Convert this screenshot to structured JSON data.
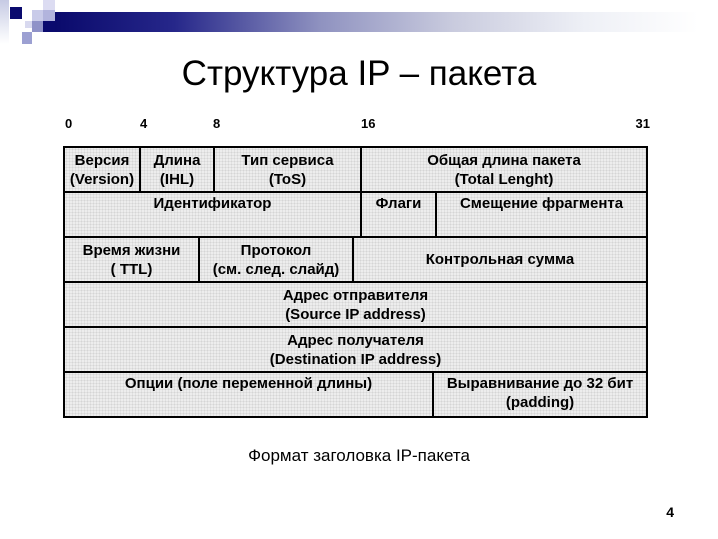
{
  "slide": {
    "title": "Структура IP – пакета",
    "caption": "Формат заголовка IP-пакета",
    "page_number": "4"
  },
  "bit_scale": {
    "labels": [
      "0",
      "4",
      "8",
      "16",
      "31"
    ]
  },
  "packet_table": {
    "rows": [
      {
        "cells": [
          {
            "field": "version",
            "line1": "Версия",
            "line2": "(Version)"
          },
          {
            "field": "ihl",
            "line1": "Длина",
            "line2": "(IHL)"
          },
          {
            "field": "tos",
            "line1": "Тип сервиса",
            "line2": "(ToS)"
          },
          {
            "field": "total-length",
            "line1": "Общая длина пакета",
            "line2": "(Total Lenght)"
          }
        ]
      },
      {
        "cells": [
          {
            "field": "identifier",
            "line1": "Идентификатор"
          },
          {
            "field": "flags",
            "line1": "Флаги"
          },
          {
            "field": "fragment-offset",
            "line1": "Смещение фрагмента"
          }
        ]
      },
      {
        "cells": [
          {
            "field": "ttl",
            "line1": "Время жизни",
            "line2": "( TTL)"
          },
          {
            "field": "protocol",
            "line1": "Протокол",
            "line2": "(см. след. слайд)"
          },
          {
            "field": "checksum",
            "line1": "Контрольная сумма"
          }
        ]
      },
      {
        "cells": [
          {
            "field": "source-address",
            "line1": "Адрес отправителя",
            "line2": "(Source IP address)"
          }
        ]
      },
      {
        "cells": [
          {
            "field": "destination-address",
            "line1": "Адрес получателя",
            "line2": "(Destination IP address)"
          }
        ]
      },
      {
        "cells": [
          {
            "field": "options",
            "line1": "Опции (поле переменной длины)"
          },
          {
            "field": "padding",
            "line1": "Выравнивание до 32 бит",
            "line2": "(padding)"
          }
        ]
      }
    ]
  },
  "colors": {
    "accent_navy": "#0a0a6e",
    "cell_background": "#ededed",
    "table_border": "#000000",
    "text": "#000000"
  }
}
